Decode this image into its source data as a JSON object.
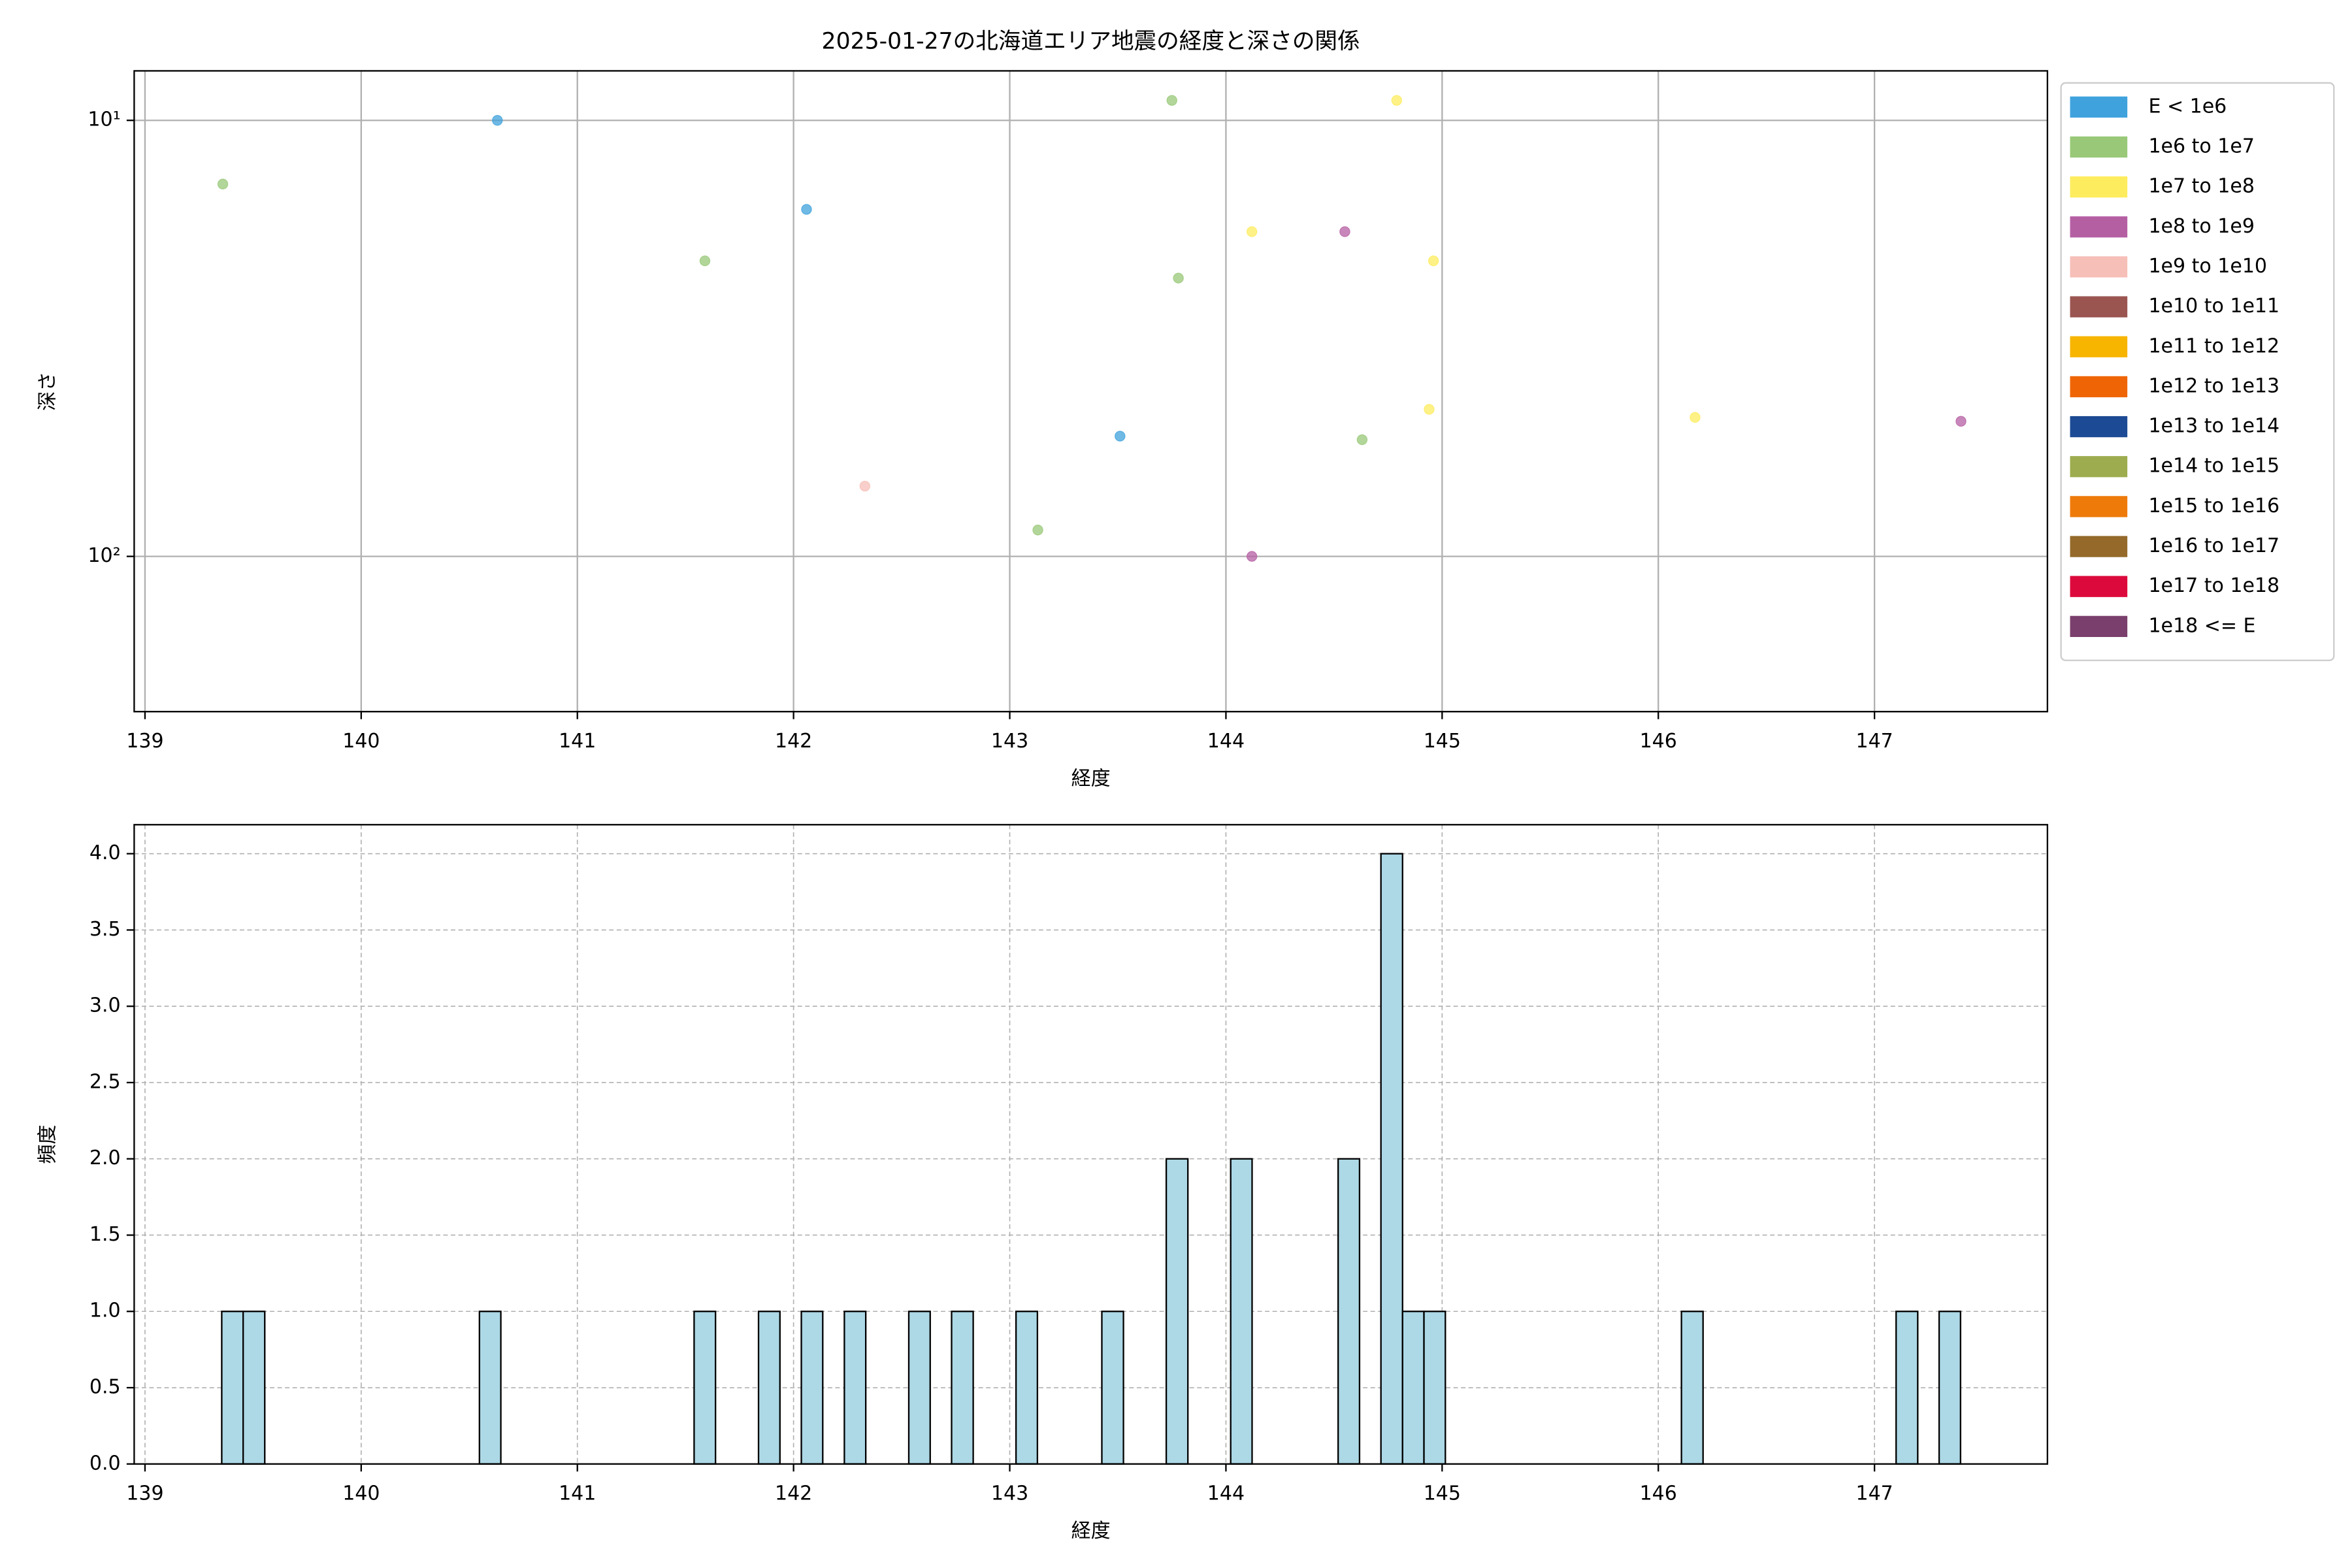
{
  "chart_data": [
    {
      "type": "scatter",
      "title": "2025-01-27の北海道エリア地震の経度と深さの関係",
      "x_label": "経度",
      "y_label": "深さ",
      "xlim": [
        138.95,
        147.8
      ],
      "xticks": [
        139,
        140,
        141,
        142,
        143,
        144,
        145,
        146,
        147
      ],
      "ylim": [
        7.7,
        227
      ],
      "y_log": true,
      "y_inverted": true,
      "yticks": [
        {
          "value": 10,
          "label": "10¹"
        },
        {
          "value": 100,
          "label": "10²"
        }
      ],
      "grid": true,
      "legend": "outside upper right",
      "series": [
        {
          "name": "E < 1e6",
          "color": "#3fa2dc",
          "x": [
            140.63,
            142.06,
            143.51
          ],
          "values": [
            10,
            16,
            53
          ]
        },
        {
          "name": "1e6 to 1e7",
          "color": "#98c878",
          "x": [
            139.36,
            141.59,
            143.75,
            143.78,
            144.63,
            143.13
          ],
          "values": [
            14,
            21,
            9,
            23,
            54,
            87
          ]
        },
        {
          "name": "1e7 to 1e8",
          "color": "#fdec5e",
          "x": [
            144.79,
            144.12,
            144.96,
            144.94,
            146.17
          ],
          "values": [
            9,
            18,
            21,
            46,
            48
          ]
        },
        {
          "name": "1e8 to 1e9",
          "color": "#b55fa3",
          "x": [
            144.55,
            147.4,
            144.12
          ],
          "values": [
            18,
            49,
            100
          ]
        },
        {
          "name": "1e9 to 1e10",
          "color": "#f6bfb8",
          "x": [
            142.33
          ],
          "values": [
            69
          ]
        },
        {
          "name": "1e10 to 1e11",
          "color": "#9a5550",
          "x": [],
          "values": []
        },
        {
          "name": "1e11 to 1e12",
          "color": "#f7b500",
          "x": [],
          "values": []
        },
        {
          "name": "1e12 to 1e13",
          "color": "#ef6506",
          "x": [],
          "values": []
        },
        {
          "name": "1e13 to 1e14",
          "color": "#1c4a94",
          "x": [],
          "values": []
        },
        {
          "name": "1e14 to 1e15",
          "color": "#9dac4e",
          "x": [],
          "values": []
        },
        {
          "name": "1e15 to 1e16",
          "color": "#ee7a0a",
          "x": [],
          "values": []
        },
        {
          "name": "1e16 to 1e17",
          "color": "#94692a",
          "x": [],
          "values": []
        },
        {
          "name": "1e17 to 1e18",
          "color": "#dc0a3c",
          "x": [],
          "values": []
        },
        {
          "name": "1e18 <= E",
          "color": "#7a3f6c",
          "x": [],
          "values": []
        }
      ]
    },
    {
      "type": "histogram",
      "x_label": "経度",
      "y_label": "頻度",
      "color": "#add8e6",
      "edgecolor": "#000000",
      "xlim": [
        138.95,
        147.8
      ],
      "xticks": [
        139,
        140,
        141,
        142,
        143,
        144,
        145,
        146,
        147
      ],
      "ylim": [
        0,
        4.19
      ],
      "yticks": [
        {
          "value": 0,
          "label": "0.0"
        },
        {
          "value": 0.5,
          "label": "0.5"
        },
        {
          "value": 1,
          "label": "1.0"
        },
        {
          "value": 1.5,
          "label": "1.5"
        },
        {
          "value": 2,
          "label": "2.0"
        },
        {
          "value": 2.5,
          "label": "2.5"
        },
        {
          "value": 3,
          "label": "3.0"
        },
        {
          "value": 3.5,
          "label": "3.5"
        },
        {
          "value": 4,
          "label": "4.0"
        }
      ],
      "grid": true,
      "grid_style": "dashed",
      "bins": [
        139.355,
        139.454,
        139.554,
        139.653,
        139.752,
        139.852,
        139.951,
        140.05,
        140.149,
        140.249,
        140.348,
        140.447,
        140.547,
        140.646,
        140.745,
        140.845,
        140.944,
        141.043,
        141.142,
        141.242,
        141.341,
        141.44,
        141.54,
        141.639,
        141.738,
        141.838,
        141.937,
        142.036,
        142.135,
        142.235,
        142.334,
        142.433,
        142.533,
        142.632,
        142.731,
        142.831,
        142.93,
        143.029,
        143.128,
        143.228,
        143.327,
        143.426,
        143.526,
        143.625,
        143.724,
        143.824,
        143.923,
        144.022,
        144.121,
        144.221,
        144.32,
        144.419,
        144.519,
        144.618,
        144.717,
        144.817,
        144.916,
        145.015,
        145.114,
        145.214,
        145.313,
        145.412,
        145.512,
        145.611,
        145.71,
        145.81,
        145.909,
        146.008,
        146.107,
        146.207,
        146.306,
        146.405,
        146.505,
        146.604,
        146.703,
        146.803,
        146.902,
        147.001,
        147.1,
        147.2,
        147.299,
        147.398
      ],
      "values": [
        1,
        1,
        0,
        0,
        0,
        0,
        0,
        0,
        0,
        0,
        0,
        0,
        1,
        0,
        0,
        0,
        0,
        0,
        0,
        0,
        0,
        0,
        1,
        0,
        0,
        1,
        0,
        1,
        0,
        1,
        0,
        0,
        1,
        0,
        1,
        0,
        0,
        1,
        0,
        0,
        0,
        1,
        0,
        0,
        2,
        0,
        0,
        2,
        0,
        0,
        0,
        0,
        2,
        0,
        4,
        1,
        1,
        0,
        0,
        0,
        0,
        0,
        0,
        0,
        0,
        0,
        0,
        0,
        1,
        0,
        0,
        0,
        0,
        0,
        0,
        0,
        0,
        0,
        1,
        0,
        1
      ]
    }
  ]
}
